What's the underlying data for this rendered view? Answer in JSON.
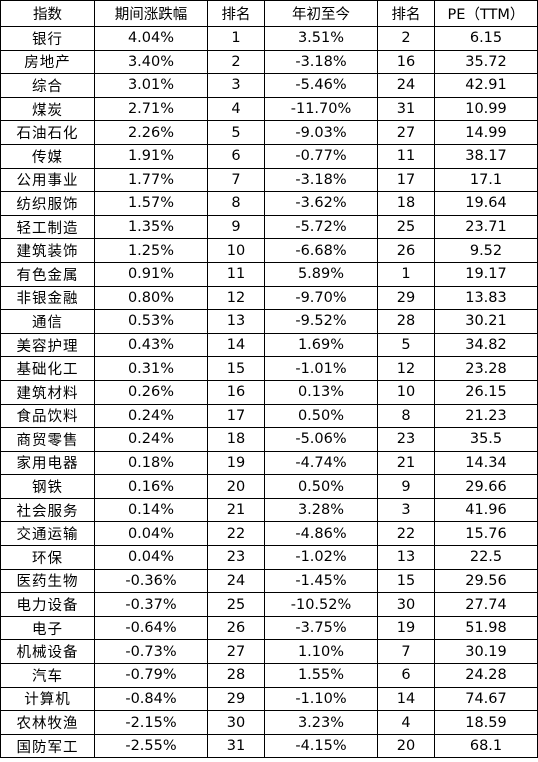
{
  "headers": [
    "指数",
    "期间涨跌幅",
    "排名",
    "年初至今",
    "排名",
    "PE（TTM）"
  ],
  "rows": [
    [
      "银行",
      "4.04%",
      "1",
      "3.51%",
      "2",
      "6.15"
    ],
    [
      "房地产",
      "3.40%",
      "2",
      "-3.18%",
      "16",
      "35.72"
    ],
    [
      "综合",
      "3.01%",
      "3",
      "-5.46%",
      "24",
      "42.91"
    ],
    [
      "煤炭",
      "2.71%",
      "4",
      "-11.70%",
      "31",
      "10.99"
    ],
    [
      "石油石化",
      "2.26%",
      "5",
      "-9.03%",
      "27",
      "14.99"
    ],
    [
      "传媒",
      "1.91%",
      "6",
      "-0.77%",
      "11",
      "38.17"
    ],
    [
      "公用事业",
      "1.77%",
      "7",
      "-3.18%",
      "17",
      "17.1"
    ],
    [
      "纺织服饰",
      "1.57%",
      "8",
      "-3.62%",
      "18",
      "19.64"
    ],
    [
      "轻工制造",
      "1.35%",
      "9",
      "-5.72%",
      "25",
      "23.71"
    ],
    [
      "建筑装饰",
      "1.25%",
      "10",
      "-6.68%",
      "26",
      "9.52"
    ],
    [
      "有色金属",
      "0.91%",
      "11",
      "5.89%",
      "1",
      "19.17"
    ],
    [
      "非银金融",
      "0.80%",
      "12",
      "-9.70%",
      "29",
      "13.83"
    ],
    [
      "通信",
      "0.53%",
      "13",
      "-9.52%",
      "28",
      "30.21"
    ],
    [
      "美容护理",
      "0.43%",
      "14",
      "1.69%",
      "5",
      "34.82"
    ],
    [
      "基础化工",
      "0.31%",
      "15",
      "-1.01%",
      "12",
      "23.28"
    ],
    [
      "建筑材料",
      "0.26%",
      "16",
      "0.13%",
      "10",
      "26.15"
    ],
    [
      "食品饮料",
      "0.24%",
      "17",
      "0.50%",
      "8",
      "21.23"
    ],
    [
      "商贸零售",
      "0.24%",
      "18",
      "-5.06%",
      "23",
      "35.5"
    ],
    [
      "家用电器",
      "0.18%",
      "19",
      "-4.74%",
      "21",
      "14.34"
    ],
    [
      "钢铁",
      "0.16%",
      "20",
      "0.50%",
      "9",
      "29.66"
    ],
    [
      "社会服务",
      "0.14%",
      "21",
      "3.28%",
      "3",
      "41.96"
    ],
    [
      "交通运输",
      "0.04%",
      "22",
      "-4.86%",
      "22",
      "15.76"
    ],
    [
      "环保",
      "0.04%",
      "23",
      "-1.02%",
      "13",
      "22.5"
    ],
    [
      "医药生物",
      "-0.36%",
      "24",
      "-1.45%",
      "15",
      "29.56"
    ],
    [
      "电力设备",
      "-0.37%",
      "25",
      "-10.52%",
      "30",
      "27.74"
    ],
    [
      "电子",
      "-0.64%",
      "26",
      "-3.75%",
      "19",
      "51.98"
    ],
    [
      "机械设备",
      "-0.73%",
      "27",
      "1.10%",
      "7",
      "30.19"
    ],
    [
      "汽车",
      "-0.79%",
      "28",
      "1.55%",
      "6",
      "24.28"
    ],
    [
      "计算机",
      "-0.84%",
      "29",
      "-1.10%",
      "14",
      "74.67"
    ],
    [
      "农林牧渔",
      "-2.15%",
      "30",
      "3.23%",
      "4",
      "18.59"
    ],
    [
      "国防军工",
      "-2.55%",
      "31",
      "-4.15%",
      "20",
      "68.1"
    ]
  ]
}
